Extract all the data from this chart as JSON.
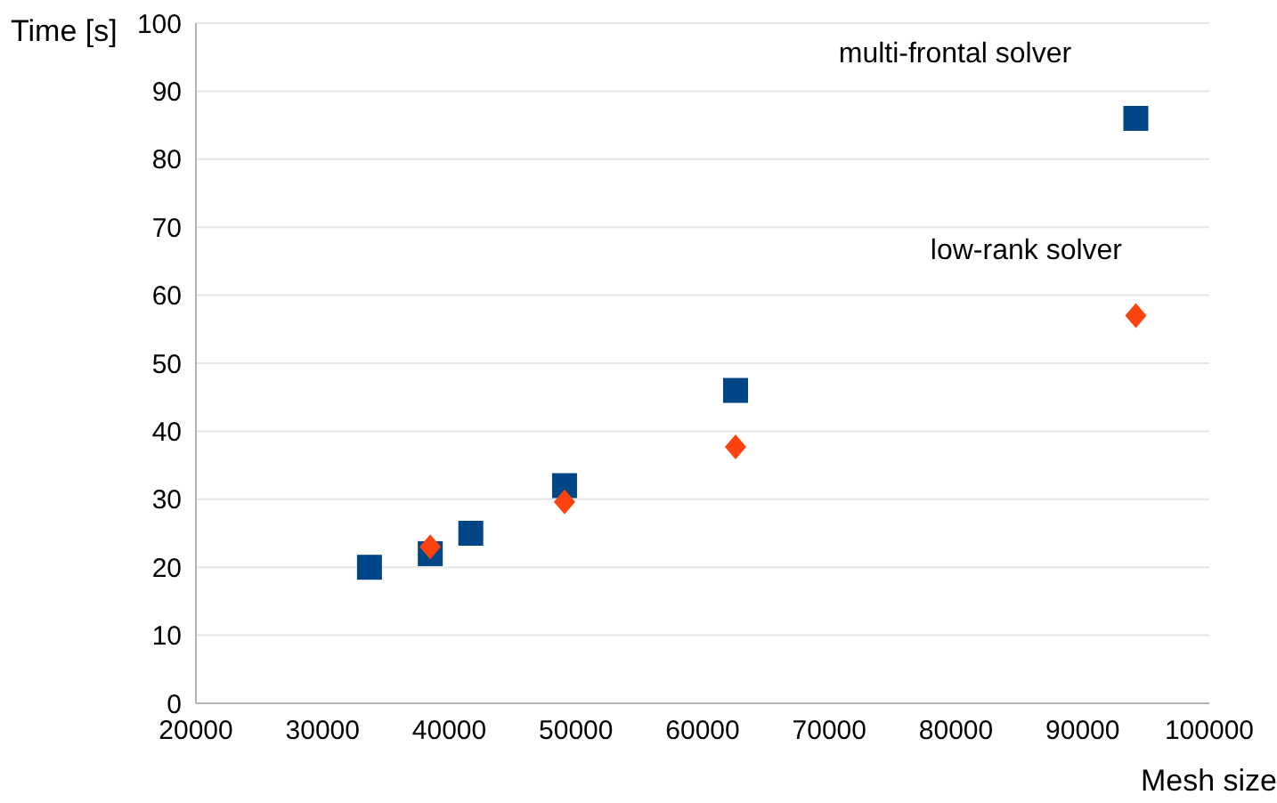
{
  "chart_data": {
    "type": "scatter",
    "xlabel": "Mesh size",
    "ylabel": "Time [s]",
    "x": [
      33700,
      38500,
      41700,
      49100,
      62600,
      94200
    ],
    "series": [
      {
        "name": "multi-frontal solver",
        "color": "#004586",
        "marker": "square",
        "values": [
          20,
          22,
          25,
          32,
          46,
          86
        ]
      },
      {
        "name": "low-rank solver",
        "color": "#ff420e",
        "marker": "diamond",
        "values": [
          null,
          23,
          null,
          29.6,
          37.7,
          57
        ]
      }
    ],
    "xlim": [
      20000,
      100000
    ],
    "xticks": [
      20000,
      30000,
      40000,
      50000,
      60000,
      70000,
      80000,
      90000,
      100000
    ],
    "ylim": [
      0,
      100
    ],
    "yticks": [
      0,
      10,
      20,
      30,
      40,
      50,
      60,
      70,
      80,
      90,
      100
    ],
    "grid": "y"
  }
}
